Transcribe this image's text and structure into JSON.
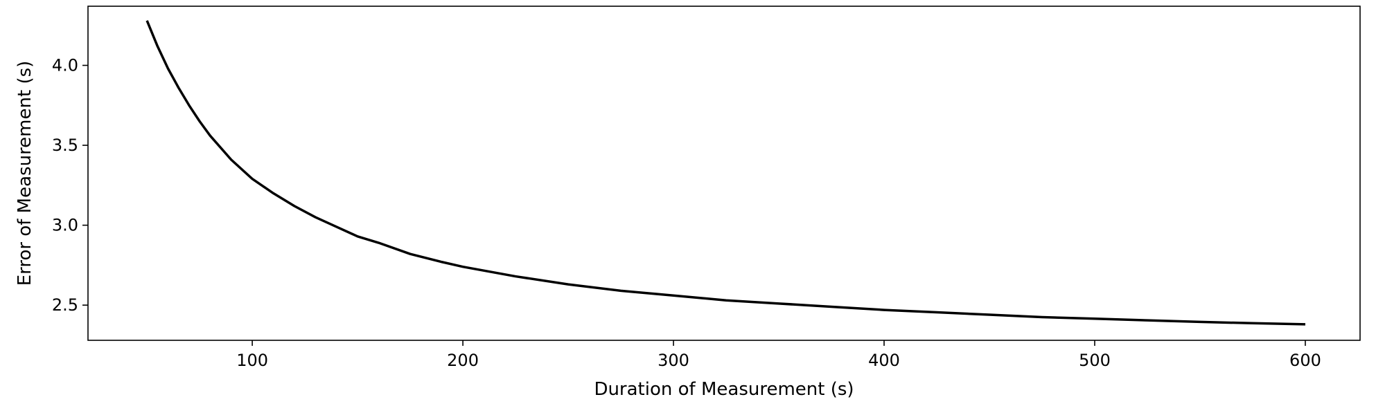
{
  "chart_data": {
    "type": "line",
    "title": "",
    "xlabel": "Duration of Measurement (s)",
    "ylabel": "Error of Measurement (s)",
    "xlim": [
      22,
      626
    ],
    "ylim": [
      2.28,
      4.37
    ],
    "xticks": [
      100,
      200,
      300,
      400,
      500,
      600
    ],
    "xtick_labels": [
      "100",
      "200",
      "300",
      "400",
      "500",
      "600"
    ],
    "yticks": [
      2.5,
      3.0,
      3.5,
      4.0
    ],
    "ytick_labels": [
      "2.5",
      "3.0",
      "3.5",
      "4.0"
    ],
    "grid": false,
    "line_color": "#000000",
    "series": [
      {
        "x": [
          50,
          55,
          60,
          65,
          70,
          75,
          80,
          90,
          100,
          110,
          120,
          130,
          140,
          150,
          160,
          175,
          190,
          200,
          225,
          250,
          275,
          300,
          325,
          350,
          375,
          400,
          425,
          450,
          475,
          500,
          525,
          550,
          575,
          600
        ],
        "y": [
          4.28,
          4.12,
          3.98,
          3.86,
          3.75,
          3.65,
          3.56,
          3.41,
          3.29,
          3.2,
          3.12,
          3.05,
          2.99,
          2.93,
          2.89,
          2.82,
          2.77,
          2.74,
          2.68,
          2.63,
          2.59,
          2.56,
          2.53,
          2.51,
          2.49,
          2.47,
          2.455,
          2.44,
          2.425,
          2.415,
          2.405,
          2.395,
          2.387,
          2.38
        ]
      }
    ]
  }
}
